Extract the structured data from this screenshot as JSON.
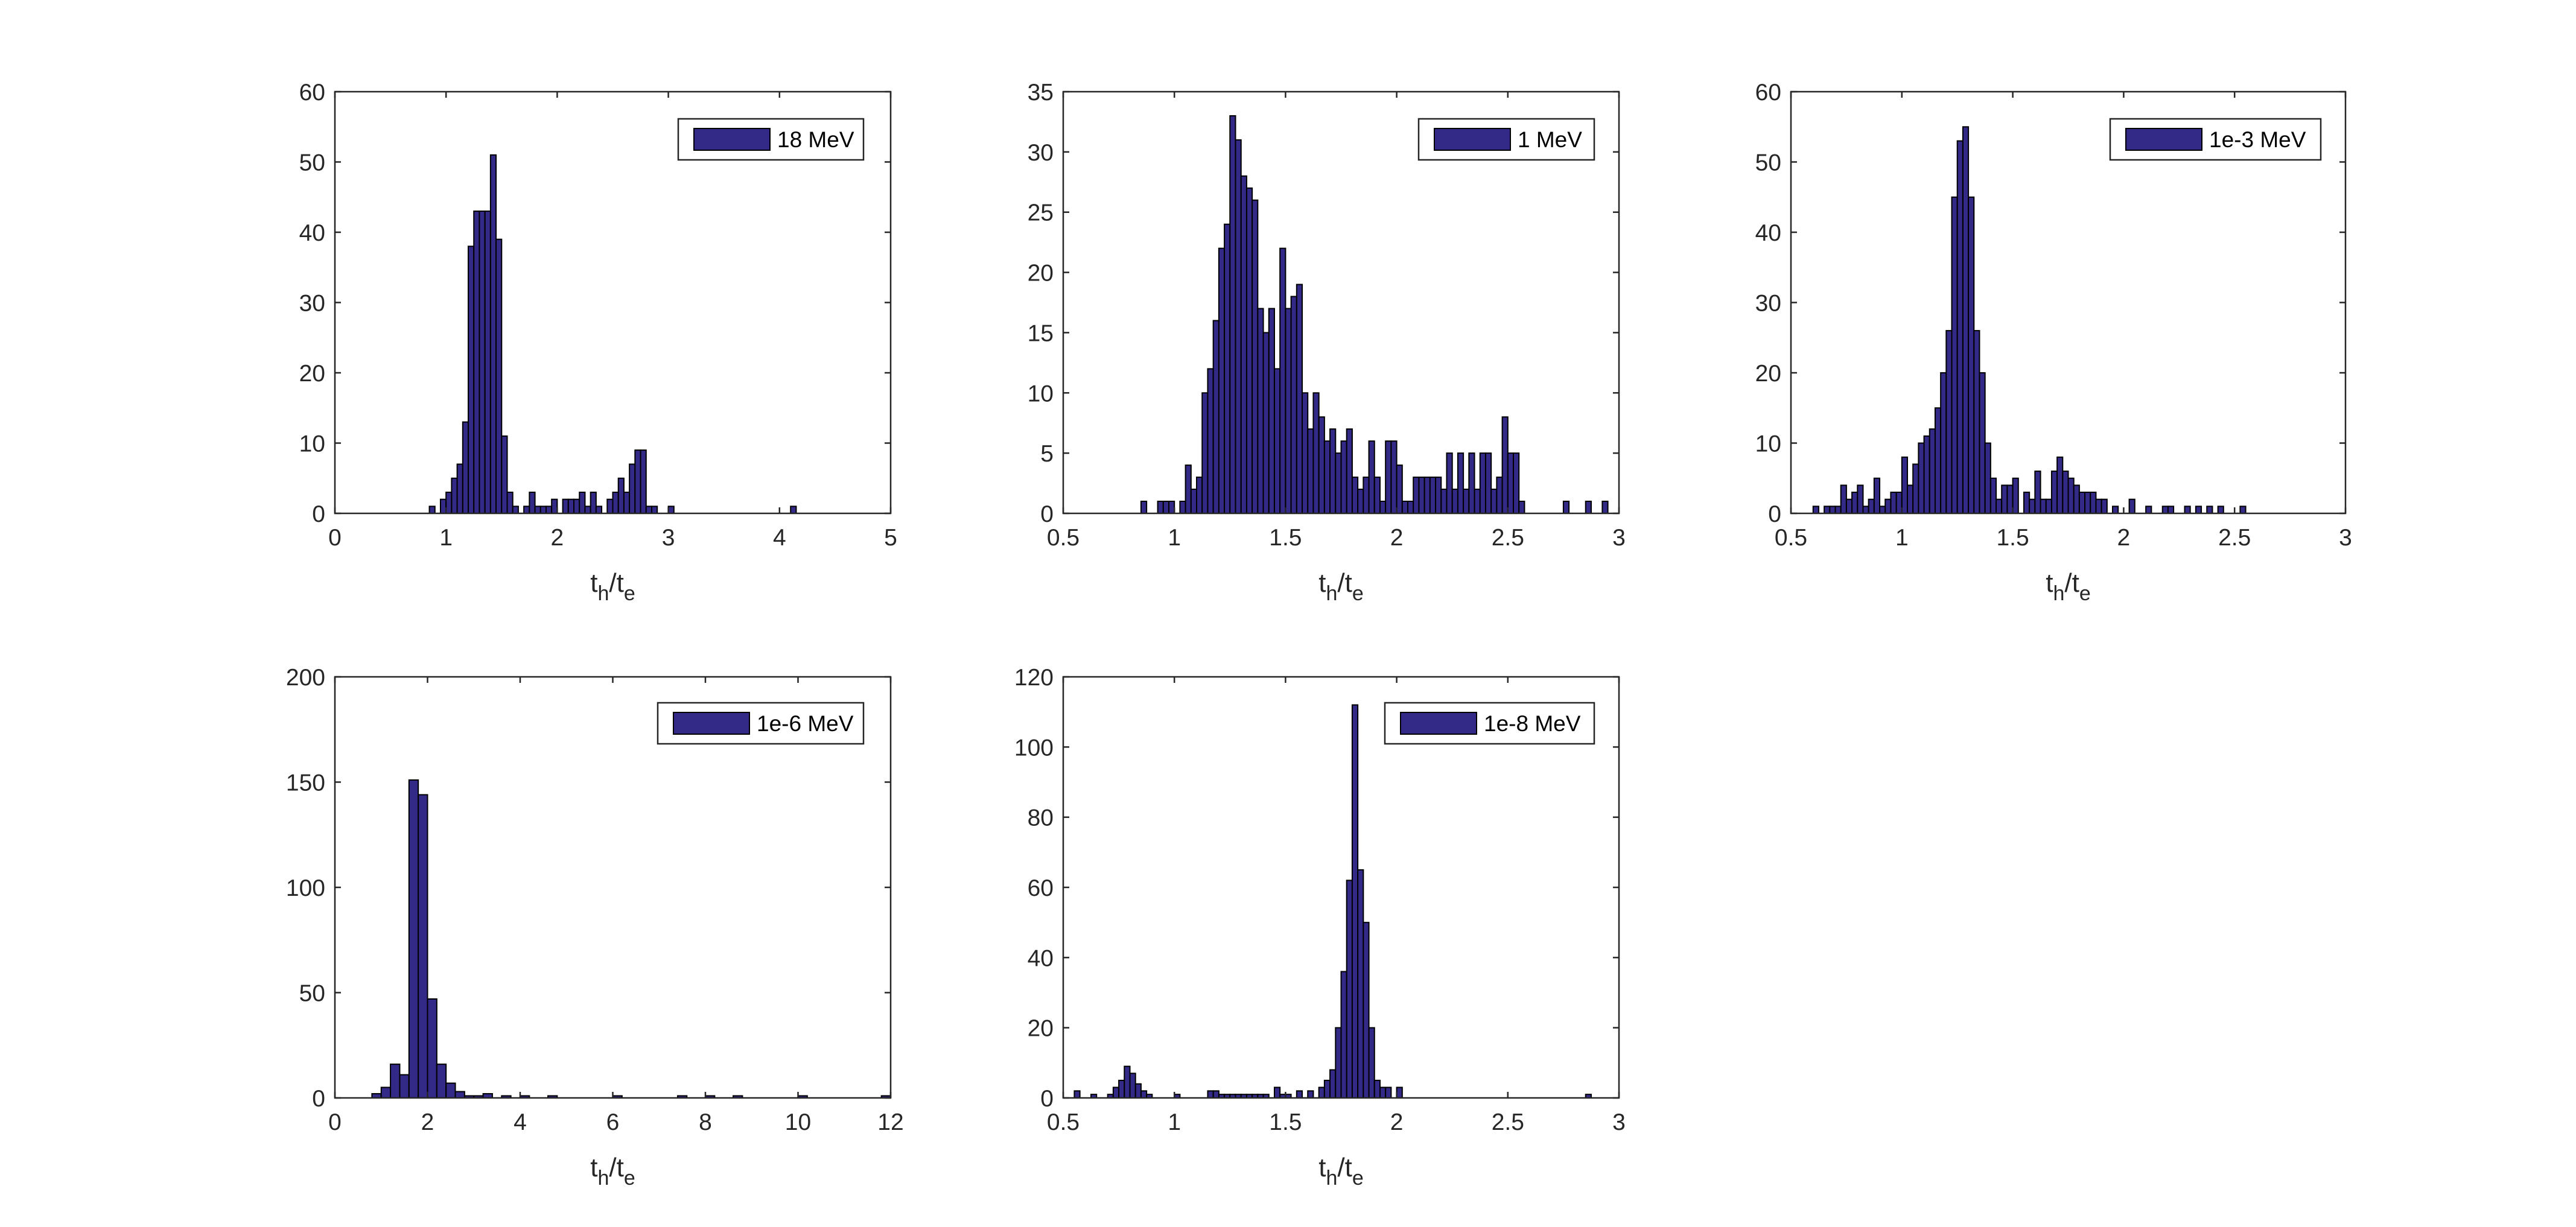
{
  "colors": {
    "bar_fill": "#332a87",
    "bar_edge": "#000000",
    "axis": "#262626",
    "background": "#ffffff"
  },
  "chart_data": [
    {
      "type": "bar",
      "legend": [
        "18 MeV"
      ],
      "legend_position": "top-right",
      "xlabel": {
        "main": "t",
        "sub1": "h",
        "slash": "/t",
        "sub2": "e"
      },
      "ylabel": "",
      "xlim": [
        0,
        5
      ],
      "ylim": [
        0,
        60
      ],
      "xticks": [
        0,
        1,
        2,
        3,
        4,
        5
      ],
      "xtick_labels": [
        "0",
        "1",
        "2",
        "3",
        "4",
        "5"
      ],
      "yticks": [
        0,
        10,
        20,
        30,
        40,
        50,
        60
      ],
      "ytick_labels": [
        "0",
        "10",
        "20",
        "30",
        "40",
        "50",
        "60"
      ],
      "bin_width": 0.05,
      "bars": [
        [
          0.85,
          1
        ],
        [
          0.95,
          2
        ],
        [
          1.0,
          3
        ],
        [
          1.05,
          5
        ],
        [
          1.1,
          7
        ],
        [
          1.15,
          13
        ],
        [
          1.2,
          38
        ],
        [
          1.25,
          43
        ],
        [
          1.3,
          43
        ],
        [
          1.35,
          43
        ],
        [
          1.4,
          51
        ],
        [
          1.45,
          39
        ],
        [
          1.5,
          11
        ],
        [
          1.55,
          3
        ],
        [
          1.6,
          1
        ],
        [
          1.7,
          1
        ],
        [
          1.75,
          3
        ],
        [
          1.8,
          1
        ],
        [
          1.85,
          1
        ],
        [
          1.9,
          1
        ],
        [
          1.95,
          2
        ],
        [
          2.05,
          2
        ],
        [
          2.1,
          2
        ],
        [
          2.15,
          2
        ],
        [
          2.2,
          3
        ],
        [
          2.25,
          1
        ],
        [
          2.3,
          3
        ],
        [
          2.35,
          1
        ],
        [
          2.45,
          2
        ],
        [
          2.5,
          3
        ],
        [
          2.55,
          5
        ],
        [
          2.6,
          3
        ],
        [
          2.65,
          7
        ],
        [
          2.7,
          9
        ],
        [
          2.75,
          9
        ],
        [
          2.8,
          1
        ],
        [
          2.85,
          1
        ],
        [
          3.0,
          1
        ],
        [
          4.1,
          1
        ]
      ]
    },
    {
      "type": "bar",
      "legend": [
        "1 MeV"
      ],
      "legend_position": "top-right",
      "xlabel": {
        "main": "t",
        "sub1": "h",
        "slash": "/t",
        "sub2": "e"
      },
      "ylabel": "",
      "xlim": [
        0.5,
        3
      ],
      "ylim": [
        0,
        35
      ],
      "xticks": [
        0.5,
        1,
        1.5,
        2,
        2.5,
        3
      ],
      "xtick_labels": [
        "0.5",
        "1",
        "1.5",
        "2",
        "2.5",
        "3"
      ],
      "yticks": [
        0,
        5,
        10,
        15,
        20,
        25,
        30,
        35
      ],
      "ytick_labels": [
        "0",
        "5",
        "10",
        "15",
        "20",
        "25",
        "30",
        "35"
      ],
      "bin_width": 0.025,
      "bars": [
        [
          0.85,
          1
        ],
        [
          0.925,
          1
        ],
        [
          0.95,
          1
        ],
        [
          0.975,
          1
        ],
        [
          1.025,
          1
        ],
        [
          1.05,
          4
        ],
        [
          1.075,
          2
        ],
        [
          1.1,
          3
        ],
        [
          1.125,
          10
        ],
        [
          1.15,
          12
        ],
        [
          1.175,
          16
        ],
        [
          1.2,
          22
        ],
        [
          1.225,
          24
        ],
        [
          1.25,
          33
        ],
        [
          1.275,
          31
        ],
        [
          1.3,
          28
        ],
        [
          1.325,
          27
        ],
        [
          1.35,
          26
        ],
        [
          1.375,
          17
        ],
        [
          1.4,
          15
        ],
        [
          1.425,
          17
        ],
        [
          1.45,
          12
        ],
        [
          1.475,
          22
        ],
        [
          1.5,
          17
        ],
        [
          1.525,
          18
        ],
        [
          1.55,
          19
        ],
        [
          1.575,
          10
        ],
        [
          1.6,
          7
        ],
        [
          1.625,
          10
        ],
        [
          1.65,
          8
        ],
        [
          1.675,
          6
        ],
        [
          1.7,
          7
        ],
        [
          1.725,
          5
        ],
        [
          1.75,
          6
        ],
        [
          1.775,
          7
        ],
        [
          1.8,
          3
        ],
        [
          1.825,
          2
        ],
        [
          1.85,
          3
        ],
        [
          1.875,
          6
        ],
        [
          1.9,
          3
        ],
        [
          1.925,
          1
        ],
        [
          1.95,
          6
        ],
        [
          1.975,
          6
        ],
        [
          2.0,
          4
        ],
        [
          2.025,
          1
        ],
        [
          2.05,
          1
        ],
        [
          2.075,
          3
        ],
        [
          2.1,
          3
        ],
        [
          2.125,
          3
        ],
        [
          2.15,
          3
        ],
        [
          2.175,
          3
        ],
        [
          2.2,
          2
        ],
        [
          2.225,
          5
        ],
        [
          2.25,
          2
        ],
        [
          2.275,
          5
        ],
        [
          2.3,
          2
        ],
        [
          2.325,
          5
        ],
        [
          2.35,
          2
        ],
        [
          2.375,
          5
        ],
        [
          2.4,
          5
        ],
        [
          2.425,
          2
        ],
        [
          2.45,
          3
        ],
        [
          2.475,
          8
        ],
        [
          2.5,
          5
        ],
        [
          2.525,
          5
        ],
        [
          2.55,
          1
        ],
        [
          2.75,
          1
        ],
        [
          2.85,
          1
        ],
        [
          2.925,
          1
        ]
      ]
    },
    {
      "type": "bar",
      "legend": [
        "1e-3 MeV"
      ],
      "legend_position": "top-right",
      "xlabel": {
        "main": "t",
        "sub1": "h",
        "slash": "/t",
        "sub2": "e"
      },
      "ylabel": "",
      "xlim": [
        0.5,
        3
      ],
      "ylim": [
        0,
        60
      ],
      "xticks": [
        0.5,
        1,
        1.5,
        2,
        2.5,
        3
      ],
      "xtick_labels": [
        "0.5",
        "1",
        "1.5",
        "2",
        "2.5",
        "3"
      ],
      "yticks": [
        0,
        10,
        20,
        30,
        40,
        50,
        60
      ],
      "ytick_labels": [
        "0",
        "10",
        "20",
        "30",
        "40",
        "50",
        "60"
      ],
      "bin_width": 0.025,
      "bars": [
        [
          0.6,
          1
        ],
        [
          0.65,
          1
        ],
        [
          0.675,
          1
        ],
        [
          0.7,
          1
        ],
        [
          0.725,
          4
        ],
        [
          0.75,
          2
        ],
        [
          0.775,
          3
        ],
        [
          0.8,
          4
        ],
        [
          0.825,
          1
        ],
        [
          0.85,
          2
        ],
        [
          0.875,
          5
        ],
        [
          0.9,
          1
        ],
        [
          0.925,
          2
        ],
        [
          0.95,
          3
        ],
        [
          0.975,
          3
        ],
        [
          1.0,
          8
        ],
        [
          1.025,
          4
        ],
        [
          1.05,
          7
        ],
        [
          1.075,
          10
        ],
        [
          1.1,
          11
        ],
        [
          1.125,
          12
        ],
        [
          1.15,
          15
        ],
        [
          1.175,
          20
        ],
        [
          1.2,
          26
        ],
        [
          1.225,
          45
        ],
        [
          1.25,
          53
        ],
        [
          1.275,
          55
        ],
        [
          1.3,
          45
        ],
        [
          1.325,
          26
        ],
        [
          1.35,
          20
        ],
        [
          1.375,
          10
        ],
        [
          1.4,
          5
        ],
        [
          1.425,
          2
        ],
        [
          1.45,
          4
        ],
        [
          1.475,
          4
        ],
        [
          1.5,
          5
        ],
        [
          1.55,
          3
        ],
        [
          1.575,
          2
        ],
        [
          1.6,
          6
        ],
        [
          1.625,
          2
        ],
        [
          1.65,
          2
        ],
        [
          1.675,
          6
        ],
        [
          1.7,
          8
        ],
        [
          1.725,
          6
        ],
        [
          1.75,
          5
        ],
        [
          1.775,
          4
        ],
        [
          1.8,
          3
        ],
        [
          1.825,
          3
        ],
        [
          1.85,
          3
        ],
        [
          1.875,
          2
        ],
        [
          1.9,
          2
        ],
        [
          1.95,
          1
        ],
        [
          2.025,
          2
        ],
        [
          2.1,
          1
        ],
        [
          2.175,
          1
        ],
        [
          2.2,
          1
        ],
        [
          2.275,
          1
        ],
        [
          2.325,
          1
        ],
        [
          2.375,
          1
        ],
        [
          2.425,
          1
        ],
        [
          2.525,
          1
        ]
      ]
    },
    {
      "type": "bar",
      "legend": [
        "1e-6 MeV"
      ],
      "legend_position": "top-right",
      "xlabel": {
        "main": "t",
        "sub1": "h",
        "slash": "/t",
        "sub2": "e"
      },
      "ylabel": "",
      "xlim": [
        0,
        12
      ],
      "ylim": [
        0,
        200
      ],
      "xticks": [
        0,
        2,
        4,
        6,
        8,
        10,
        12
      ],
      "xtick_labels": [
        "0",
        "2",
        "4",
        "6",
        "8",
        "10",
        "12"
      ],
      "yticks": [
        0,
        50,
        100,
        150,
        200
      ],
      "ytick_labels": [
        "0",
        "50",
        "100",
        "150",
        "200"
      ],
      "bin_width": 0.2,
      "bars": [
        [
          0.8,
          2
        ],
        [
          1.0,
          5
        ],
        [
          1.2,
          16
        ],
        [
          1.4,
          11
        ],
        [
          1.6,
          151
        ],
        [
          1.8,
          144
        ],
        [
          2.0,
          47
        ],
        [
          2.2,
          16
        ],
        [
          2.4,
          7
        ],
        [
          2.6,
          3
        ],
        [
          2.8,
          1
        ],
        [
          3.0,
          1
        ],
        [
          3.2,
          2
        ],
        [
          3.6,
          1
        ],
        [
          4.0,
          1
        ],
        [
          4.6,
          1
        ],
        [
          6.0,
          1
        ],
        [
          7.4,
          1
        ],
        [
          8.0,
          1
        ],
        [
          8.6,
          1
        ],
        [
          10.0,
          1
        ],
        [
          11.8,
          1
        ]
      ]
    },
    {
      "type": "bar",
      "legend": [
        "1e-8 MeV"
      ],
      "legend_position": "top-right",
      "xlabel": {
        "main": "t",
        "sub1": "h",
        "slash": "/t",
        "sub2": "e"
      },
      "ylabel": "",
      "xlim": [
        0.5,
        3
      ],
      "ylim": [
        0,
        120
      ],
      "xticks": [
        0.5,
        1,
        1.5,
        2,
        2.5,
        3
      ],
      "xtick_labels": [
        "0.5",
        "1",
        "1.5",
        "2",
        "2.5",
        "3"
      ],
      "yticks": [
        0,
        20,
        40,
        60,
        80,
        100,
        120
      ],
      "ytick_labels": [
        "0",
        "20",
        "40",
        "60",
        "80",
        "100",
        "120"
      ],
      "bin_width": 0.025,
      "bars": [
        [
          0.55,
          2
        ],
        [
          0.625,
          1
        ],
        [
          0.7,
          1
        ],
        [
          0.725,
          3
        ],
        [
          0.75,
          5
        ],
        [
          0.775,
          9
        ],
        [
          0.8,
          7
        ],
        [
          0.825,
          4
        ],
        [
          0.85,
          2
        ],
        [
          0.875,
          1
        ],
        [
          1.0,
          1
        ],
        [
          1.15,
          2
        ],
        [
          1.175,
          2
        ],
        [
          1.2,
          1
        ],
        [
          1.225,
          1
        ],
        [
          1.25,
          1
        ],
        [
          1.275,
          1
        ],
        [
          1.3,
          1
        ],
        [
          1.325,
          1
        ],
        [
          1.35,
          1
        ],
        [
          1.375,
          1
        ],
        [
          1.4,
          1
        ],
        [
          1.45,
          3
        ],
        [
          1.475,
          1
        ],
        [
          1.5,
          1
        ],
        [
          1.55,
          2
        ],
        [
          1.6,
          2
        ],
        [
          1.65,
          3
        ],
        [
          1.675,
          5
        ],
        [
          1.7,
          8
        ],
        [
          1.725,
          20
        ],
        [
          1.75,
          36
        ],
        [
          1.775,
          62
        ],
        [
          1.8,
          112
        ],
        [
          1.825,
          65
        ],
        [
          1.85,
          50
        ],
        [
          1.875,
          20
        ],
        [
          1.9,
          5
        ],
        [
          1.925,
          3
        ],
        [
          1.95,
          3
        ],
        [
          2.0,
          3
        ],
        [
          2.85,
          1
        ]
      ]
    }
  ]
}
